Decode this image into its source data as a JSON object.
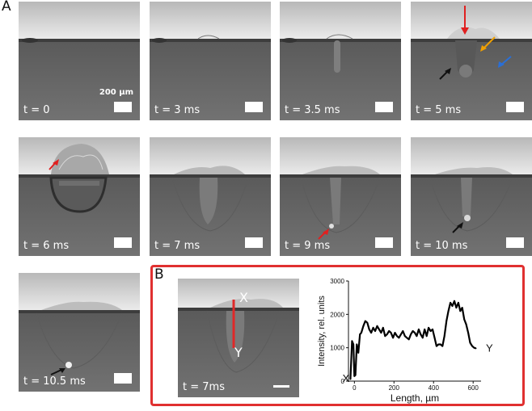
{
  "panel_a_label": "A",
  "panel_b_label": "B",
  "scale_label": "200 µm",
  "frames": [
    {
      "label": "t = 0"
    },
    {
      "label": "t = 3 ms"
    },
    {
      "label": "t = 3.5 ms"
    },
    {
      "label": "t = 5 ms"
    },
    {
      "label": "t = 6 ms"
    },
    {
      "label": "t = 7 ms"
    },
    {
      "label": "t = 9 ms"
    },
    {
      "label": "t = 10 ms"
    },
    {
      "label": "t = 10.5 ms"
    }
  ],
  "panel_b": {
    "image_label": "t = 7ms",
    "marker_x": "X",
    "marker_y": "Y",
    "line_color": "#e02828",
    "chart_data": {
      "type": "line",
      "xlabel": "Length, µm",
      "ylabel": "Intensity, rel. units",
      "xlim": [
        -30,
        640
      ],
      "ylim": [
        0,
        3000
      ],
      "xticks": [
        0,
        200,
        400,
        600
      ],
      "yticks": [
        0,
        1000,
        2000,
        3000
      ],
      "start_label": "X",
      "end_label": "Y",
      "x": [
        -20,
        -12,
        -5,
        0,
        5,
        12,
        20,
        28,
        35,
        45,
        55,
        65,
        75,
        85,
        95,
        105,
        115,
        125,
        135,
        145,
        155,
        165,
        175,
        185,
        195,
        205,
        215,
        225,
        235,
        245,
        255,
        265,
        275,
        285,
        295,
        305,
        315,
        325,
        335,
        345,
        355,
        365,
        375,
        385,
        395,
        405,
        415,
        425,
        435,
        445,
        455,
        465,
        475,
        485,
        495,
        505,
        515,
        525,
        535,
        545,
        555,
        565,
        575,
        585,
        595,
        605,
        615
      ],
      "y": [
        50,
        1200,
        1100,
        150,
        180,
        1100,
        850,
        1400,
        1450,
        1650,
        1800,
        1750,
        1550,
        1450,
        1600,
        1500,
        1650,
        1550,
        1450,
        1600,
        1350,
        1400,
        1500,
        1450,
        1300,
        1450,
        1350,
        1300,
        1400,
        1500,
        1350,
        1300,
        1250,
        1400,
        1500,
        1450,
        1350,
        1550,
        1400,
        1300,
        1550,
        1350,
        1600,
        1500,
        1550,
        1300,
        1050,
        1100,
        1100,
        1050,
        1350,
        1800,
        2100,
        2350,
        2250,
        2400,
        2200,
        2350,
        2100,
        2200,
        1850,
        1700,
        1450,
        1150,
        1050,
        1000,
        980
      ]
    }
  }
}
